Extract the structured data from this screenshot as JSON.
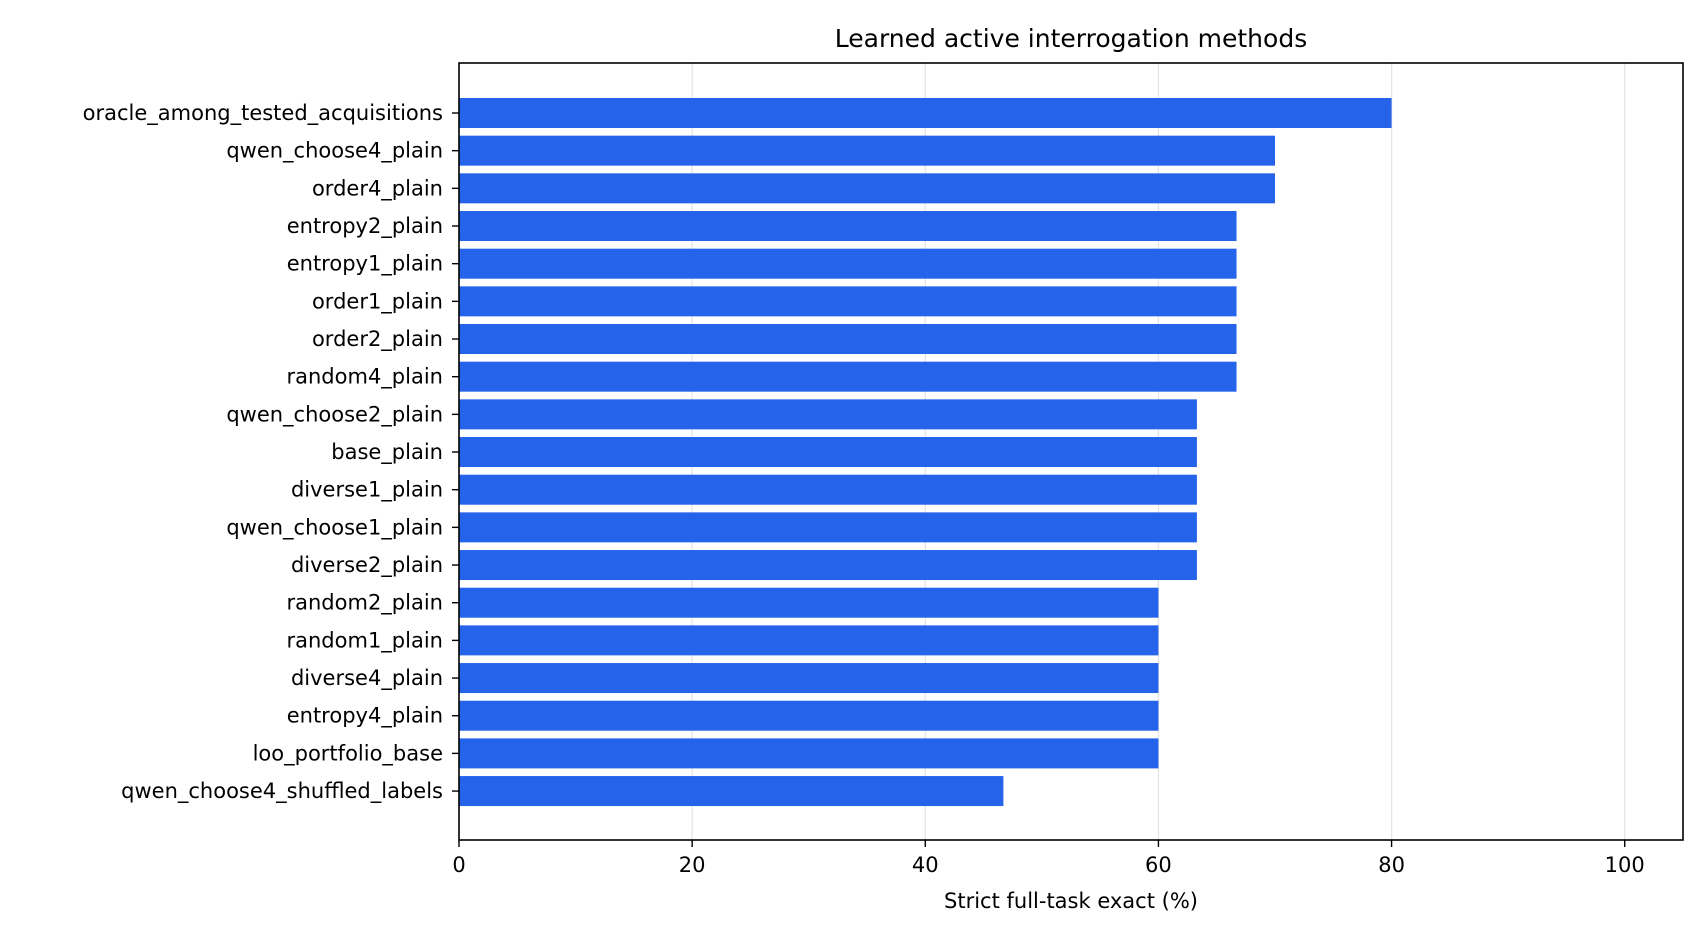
{
  "chart_data": {
    "type": "bar",
    "orientation": "horizontal",
    "title": "Learned active interrogation methods",
    "xlabel": "Strict full-task exact (%)",
    "ylabel": "",
    "xlim": [
      0,
      105
    ],
    "xticks": [
      0,
      20,
      40,
      60,
      80,
      100
    ],
    "grid": "x",
    "color": "#2563eb",
    "categories": [
      "oracle_among_tested_acquisitions",
      "qwen_choose4_plain",
      "order4_plain",
      "entropy2_plain",
      "entropy1_plain",
      "order1_plain",
      "order2_plain",
      "random4_plain",
      "qwen_choose2_plain",
      "base_plain",
      "diverse1_plain",
      "qwen_choose1_plain",
      "diverse2_plain",
      "random2_plain",
      "random1_plain",
      "diverse4_plain",
      "entropy4_plain",
      "loo_portfolio_base",
      "qwen_choose4_shuffled_labels"
    ],
    "values": [
      80.0,
      70.0,
      70.0,
      66.7,
      66.7,
      66.7,
      66.7,
      66.7,
      63.3,
      63.3,
      63.3,
      63.3,
      63.3,
      60.0,
      60.0,
      60.0,
      60.0,
      60.0,
      46.7
    ]
  }
}
